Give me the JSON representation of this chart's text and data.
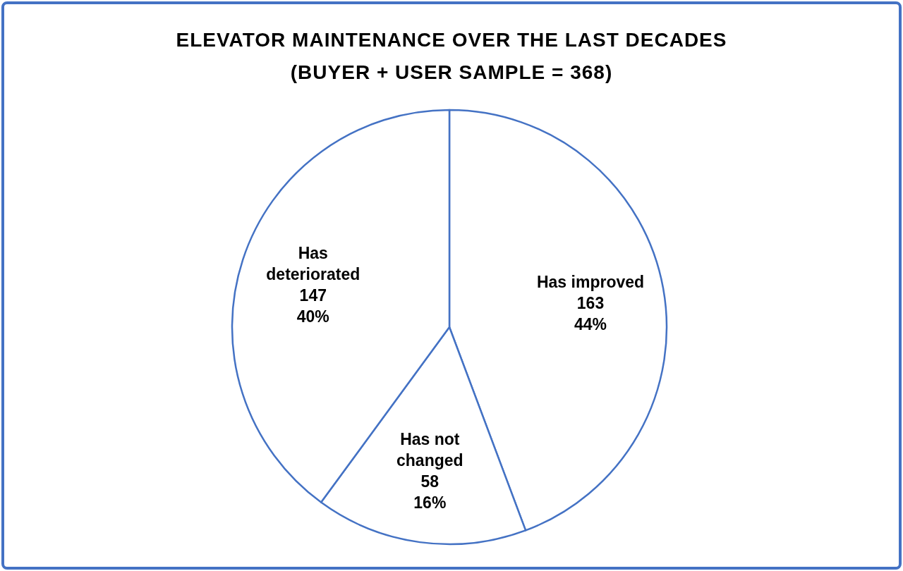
{
  "chart_data": {
    "type": "pie",
    "title": "ELEVATOR MAINTENANCE OVER THE LAST DECADES",
    "subtitle": "(BUYER + USER SAMPLE = 368)",
    "categories": [
      "Has improved",
      "Has not changed",
      "Has deteriorated"
    ],
    "values": [
      163,
      58,
      147
    ],
    "value_labels": [
      "163\n44%",
      "58\n16%",
      "147\n40%"
    ],
    "colors": [
      "#ffffff",
      "#ffffff",
      "#ffffff"
    ],
    "legend": false
  }
}
